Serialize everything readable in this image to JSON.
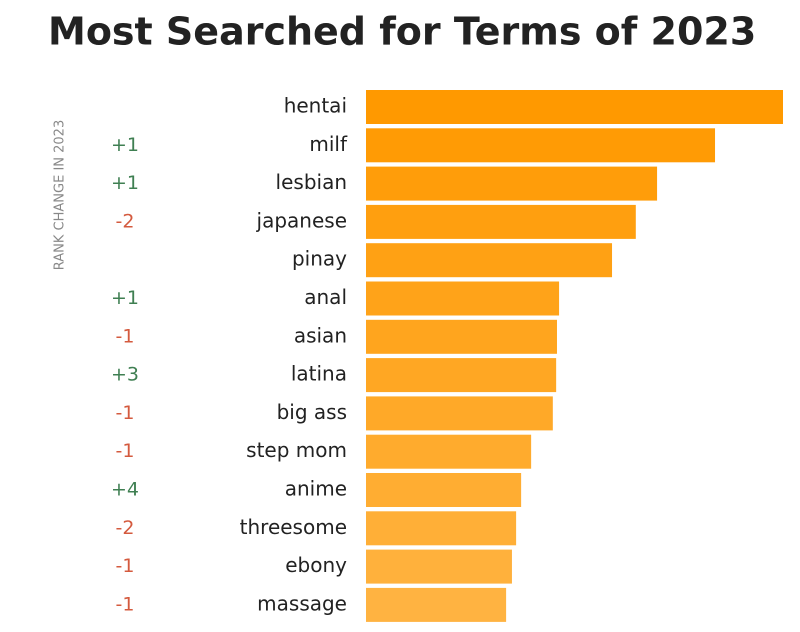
{
  "chart_data": {
    "type": "bar",
    "orientation": "horizontal",
    "title": "Most Searched for Terms of 2023",
    "rank_change_label": "RANK CHANGE IN 2023",
    "categories": [
      "hentai",
      "milf",
      "lesbian",
      "japanese",
      "pinay",
      "anal",
      "asian",
      "latina",
      "big ass",
      "step mom",
      "anime",
      "threesome",
      "ebony",
      "massage"
    ],
    "values": [
      100,
      83.7,
      69.8,
      64.7,
      59,
      46.3,
      45.8,
      45.6,
      44.8,
      39.6,
      37.2,
      36,
      35,
      33.6
    ],
    "rank_changes": [
      null,
      "+1",
      "+1",
      "-2",
      null,
      "+1",
      "-1",
      "+3",
      "-1",
      "-1",
      "+4",
      "-2",
      "-1",
      "-1"
    ],
    "colors": [
      "#ff9900",
      "#ff9b05",
      "#ff9d0a",
      "#ff9f0f",
      "#ffa114",
      "#ffa319",
      "#ffa51e",
      "#ffa723",
      "#ffa928",
      "#ffab2d",
      "#ffad32",
      "#ffaf37",
      "#ffb13c",
      "#ffb341"
    ],
    "rank_change_colors": [
      "#3f7f52",
      "#d45a3e"
    ]
  }
}
